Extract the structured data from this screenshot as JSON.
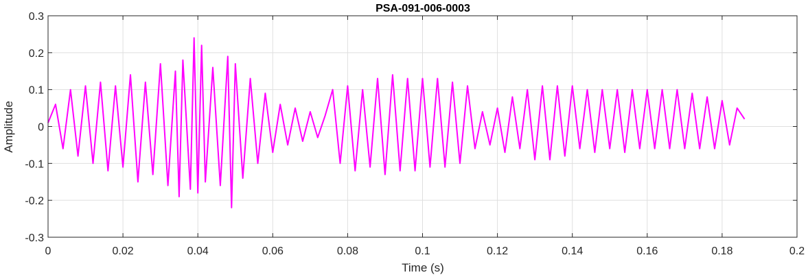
{
  "chart_data": {
    "type": "line",
    "title": "PSA-091-006-0003",
    "xlabel": "Time (s)",
    "ylabel": "Amplitude",
    "xlim": [
      0,
      0.2
    ],
    "ylim": [
      -0.3,
      0.3
    ],
    "xticks": [
      0,
      0.02,
      0.04,
      0.06,
      0.08,
      0.1,
      0.12,
      0.14,
      0.16,
      0.18,
      0.2
    ],
    "xtick_labels": [
      "0",
      "0.02",
      "0.04",
      "0.06",
      "0.08",
      "0.1",
      "0.12",
      "0.14",
      "0.16",
      "0.18",
      "0.2"
    ],
    "yticks": [
      -0.3,
      -0.2,
      -0.1,
      0,
      0.1,
      0.2,
      0.3
    ],
    "ytick_labels": [
      "-0.3",
      "-0.2",
      "-0.1",
      "0",
      "0.1",
      "0.2",
      "0.3"
    ],
    "grid": true,
    "series": [
      {
        "color": "#ff00ff",
        "x": [
          0.0,
          0.002,
          0.004,
          0.006,
          0.008,
          0.01,
          0.012,
          0.014,
          0.016,
          0.018,
          0.02,
          0.022,
          0.024,
          0.026,
          0.028,
          0.03,
          0.032,
          0.034,
          0.035,
          0.036,
          0.038,
          0.039,
          0.04,
          0.041,
          0.042,
          0.044,
          0.046,
          0.048,
          0.049,
          0.05,
          0.052,
          0.054,
          0.056,
          0.058,
          0.06,
          0.062,
          0.064,
          0.066,
          0.068,
          0.07,
          0.072,
          0.074,
          0.076,
          0.078,
          0.08,
          0.082,
          0.084,
          0.086,
          0.088,
          0.09,
          0.092,
          0.094,
          0.096,
          0.098,
          0.1,
          0.102,
          0.104,
          0.106,
          0.108,
          0.11,
          0.112,
          0.114,
          0.116,
          0.118,
          0.12,
          0.122,
          0.124,
          0.126,
          0.128,
          0.13,
          0.132,
          0.134,
          0.136,
          0.138,
          0.14,
          0.142,
          0.144,
          0.146,
          0.148,
          0.15,
          0.152,
          0.154,
          0.156,
          0.158,
          0.16,
          0.162,
          0.164,
          0.166,
          0.168,
          0.17,
          0.172,
          0.174,
          0.176,
          0.178,
          0.18,
          0.182,
          0.184,
          0.186
        ],
        "y": [
          0.01,
          0.06,
          -0.06,
          0.1,
          -0.08,
          0.11,
          -0.1,
          0.12,
          -0.12,
          0.11,
          -0.11,
          0.14,
          -0.15,
          0.12,
          -0.13,
          0.17,
          -0.16,
          0.15,
          -0.19,
          0.18,
          -0.17,
          0.24,
          -0.18,
          0.22,
          -0.15,
          0.16,
          -0.16,
          0.19,
          -0.22,
          0.17,
          -0.14,
          0.13,
          -0.1,
          0.09,
          -0.07,
          0.06,
          -0.05,
          0.05,
          -0.04,
          0.04,
          -0.03,
          0.03,
          0.1,
          -0.1,
          0.11,
          -0.12,
          0.1,
          -0.11,
          0.13,
          -0.13,
          0.14,
          -0.12,
          0.13,
          -0.12,
          0.13,
          -0.11,
          0.13,
          -0.11,
          0.12,
          -0.1,
          0.11,
          -0.06,
          0.04,
          -0.05,
          0.05,
          -0.07,
          0.08,
          -0.06,
          0.1,
          -0.09,
          0.11,
          -0.09,
          0.11,
          -0.08,
          0.11,
          -0.06,
          0.1,
          -0.07,
          0.1,
          -0.06,
          0.1,
          -0.07,
          0.1,
          -0.06,
          0.1,
          -0.06,
          0.1,
          -0.06,
          0.1,
          -0.06,
          0.09,
          -0.06,
          0.08,
          -0.06,
          0.07,
          -0.05,
          0.05,
          0.02
        ]
      }
    ]
  }
}
